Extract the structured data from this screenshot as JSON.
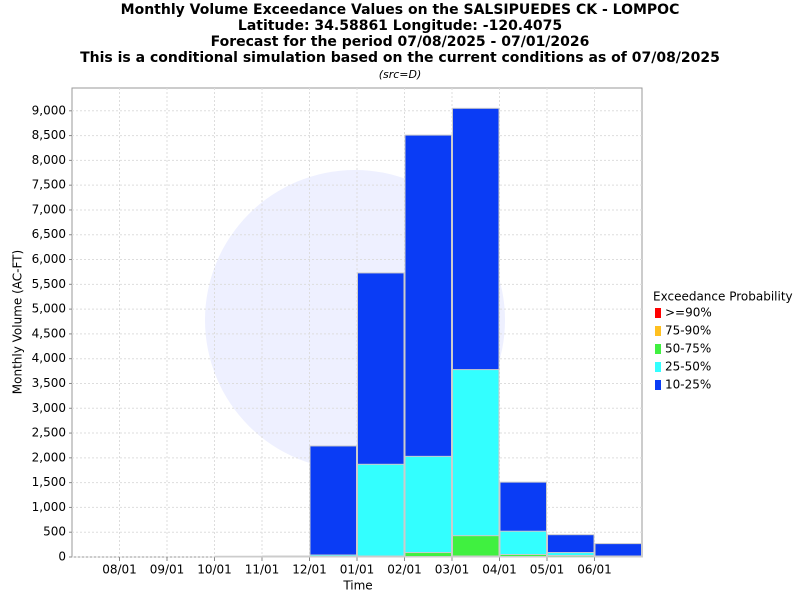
{
  "chart_data": {
    "type": "bar",
    "title": "Monthly Volume Exceedance Values on the SALSIPUEDES CK - LOMPOC",
    "subtitle_lines": [
      "Latitude: 34.58861 Longitude: -120.4075",
      "Forecast for the period 07/08/2025 - 07/01/2026",
      "This is a conditional simulation based on the current conditions as of 07/08/2025",
      "(src=D)"
    ],
    "x_label": "Time",
    "y_label": "Monthly Volume (AC-FT)",
    "legend_title": "Exceedance Probability",
    "legend": "right",
    "grid": true,
    "categories": [
      null,
      "08/01",
      "09/01",
      "10/01",
      "11/01",
      "12/01",
      "01/01",
      "02/01",
      "03/01",
      "04/01",
      "05/01",
      "06/01"
    ],
    "series": [
      {
        "name": ">=90%",
        "color": "#ff0000",
        "values": [
          0,
          0,
          0,
          0,
          0,
          0,
          0,
          0,
          5,
          0,
          0,
          0
        ]
      },
      {
        "name": "75-90%",
        "color": "#ffc020",
        "values": [
          0,
          0,
          0,
          0,
          0,
          0,
          5,
          10,
          20,
          10,
          5,
          0
        ]
      },
      {
        "name": "50-75%",
        "color": "#40f040",
        "values": [
          0,
          0,
          0,
          5,
          5,
          10,
          20,
          90,
          430,
          50,
          30,
          10
        ]
      },
      {
        "name": "25-50%",
        "color": "#33ffff",
        "values": [
          0,
          0,
          0,
          10,
          15,
          40,
          1870,
          2030,
          3780,
          520,
          90,
          20
        ]
      },
      {
        "name": "10-25%",
        "color": "#0a3cf5",
        "values": [
          0,
          0,
          0,
          15,
          20,
          2240,
          5730,
          8510,
          9050,
          1510,
          450,
          270
        ]
      }
    ],
    "ylim": [
      0,
      9460
    ],
    "yticks": [
      0,
      500,
      {
        "value": 1000,
        "label": "1,000"
      },
      {
        "value": 1500,
        "label": "1,500"
      },
      {
        "value": 2000,
        "label": "2,000"
      },
      {
        "value": 2500,
        "label": "2,500"
      },
      {
        "value": 3000,
        "label": "3,000"
      },
      {
        "value": 3500,
        "label": "3,500"
      },
      {
        "value": 4000,
        "label": "4,000"
      },
      {
        "value": 4500,
        "label": "4,500"
      },
      {
        "value": 5000,
        "label": "5,000"
      },
      {
        "value": 5500,
        "label": "5,500"
      },
      {
        "value": 6000,
        "label": "6,000"
      },
      {
        "value": 6500,
        "label": "6,500"
      },
      {
        "value": 7000,
        "label": "7,000"
      },
      {
        "value": 7500,
        "label": "7,500"
      },
      {
        "value": 8000,
        "label": "8,000"
      },
      {
        "value": 8500,
        "label": "8,500"
      },
      {
        "value": 9000,
        "label": "9,000"
      }
    ]
  }
}
